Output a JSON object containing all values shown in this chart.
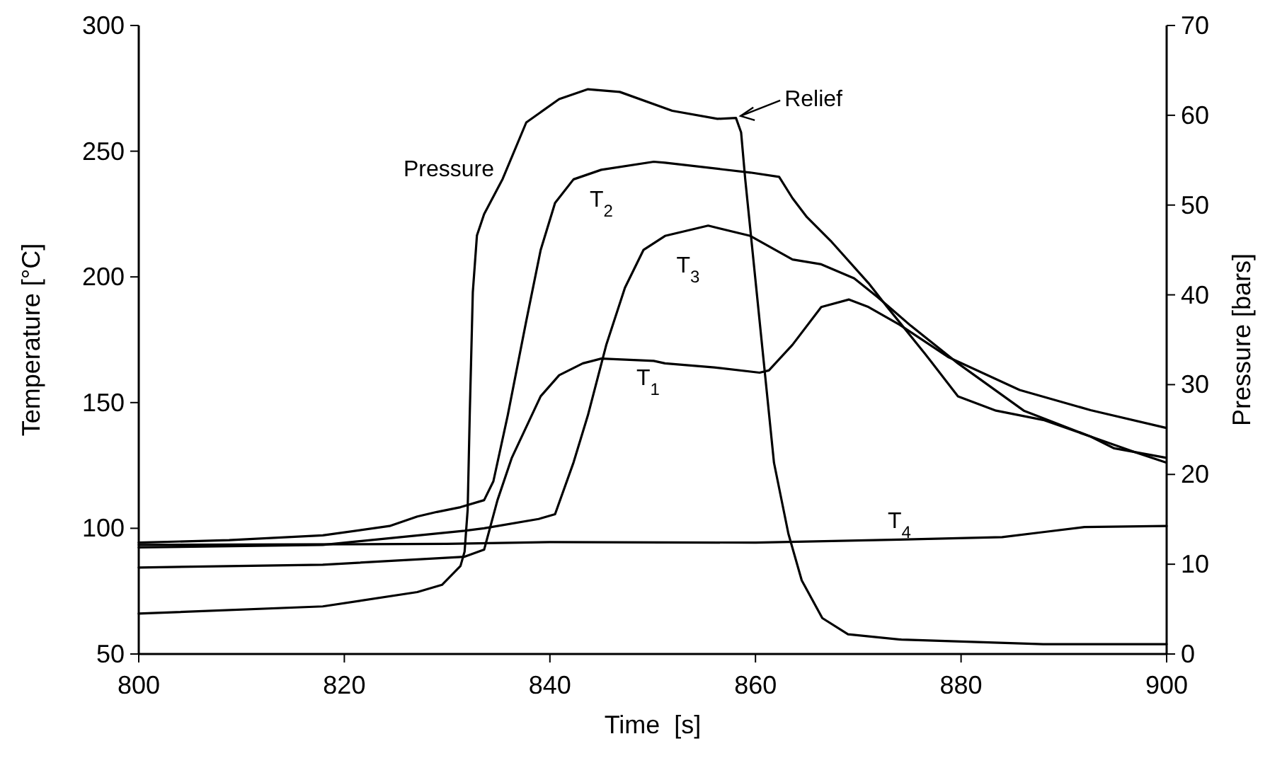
{
  "chart_data": {
    "type": "line",
    "xlabel": "Time  [s]",
    "ylabel": "Temperature [°C]",
    "y2label": "Pressure [bars]",
    "xlim": [
      800,
      900
    ],
    "xticks": [
      800,
      820,
      840,
      860,
      880,
      900
    ],
    "ylim": [
      50,
      300
    ],
    "yticks": [
      50,
      100,
      150,
      200,
      250,
      300
    ],
    "y2lim": [
      0,
      70
    ],
    "y2ticks": [
      0,
      10,
      20,
      30,
      40,
      50,
      60,
      70
    ],
    "grid": false,
    "marker": "none",
    "line_style": "solid",
    "annotations": [
      {
        "text": "Relief",
        "x": 858,
        "y": 264
      }
    ],
    "series": [
      {
        "name": "Pressure",
        "color": "#000000",
        "axis": "y2",
        "x": [
          800,
          817.9,
          827.1,
          829.5,
          831.3,
          831.7,
          832.0,
          832.2,
          832.5,
          832.9,
          833.6,
          835.4,
          837.7,
          840.9,
          843.7,
          846.8,
          851.9,
          856.3,
          858.1,
          858.6,
          859.0,
          861.8,
          863.2,
          864.5,
          866.5,
          869,
          874.2,
          888,
          900
        ],
        "values": [
          4.5,
          5.3,
          6.9,
          7.7,
          9.8,
          11.4,
          16.1,
          26.6,
          40.3,
          46.6,
          49,
          52.9,
          59.2,
          61.8,
          62.9,
          62.6,
          60.5,
          59.6,
          59.7,
          58.1,
          52.9,
          21.3,
          13.4,
          8.2,
          4.0,
          2.2,
          1.6,
          1.1,
          1.1
        ]
      },
      {
        "name": "T$_{1}$",
        "color": "#000000",
        "x": [
          800,
          817.9,
          831.7,
          833.6,
          834.9,
          836.3,
          839.1,
          840.9,
          843.2,
          845.0,
          850.1,
          851.2,
          856,
          860.4,
          861.3,
          863.6,
          866.4,
          869.1,
          871,
          874,
          878.8,
          885.7,
          892.6,
          899.9
        ],
        "values": [
          84.4,
          85.5,
          88.7,
          91.5,
          111.2,
          128.1,
          152.5,
          160.9,
          165.6,
          167.5,
          166.6,
          165.6,
          164,
          161.9,
          162.8,
          173.0,
          188.0,
          191.0,
          188.0,
          181.0,
          168.0,
          155.0,
          147.0,
          140.0
        ]
      },
      {
        "name": "T$_{2}$",
        "color": "#000000",
        "x": [
          800,
          808.8,
          817.9,
          824.4,
          827.1,
          829.0,
          831.3,
          833.6,
          834.5,
          835.9,
          837.7,
          839.1,
          840.5,
          842.3,
          845.0,
          850.1,
          851.2,
          859.5,
          862.3,
          863.6,
          865.0,
          867.3,
          871.0,
          872.8,
          876.5,
          879.7,
          883.4,
          888.0,
          892.6,
          897.1,
          899.9
        ],
        "values": [
          94.3,
          95.3,
          97.2,
          100.9,
          104.7,
          106.5,
          108.4,
          111.2,
          118.7,
          145.0,
          182.5,
          210.7,
          229.4,
          238.8,
          242.6,
          245.8,
          245.4,
          241.5,
          239.8,
          231.3,
          223.8,
          214.4,
          197.5,
          188.1,
          169.4,
          152.5,
          146.8,
          143.1,
          136.5,
          130.0,
          126.2
        ]
      },
      {
        "name": "T$_{3}$",
        "color": "#000000",
        "x": [
          800,
          817.9,
          831.7,
          833.6,
          838.9,
          840.5,
          842.3,
          843.7,
          845.5,
          847.3,
          849.1,
          851.2,
          855.4,
          859.5,
          863.6,
          866.4,
          869.6,
          871.9,
          875.1,
          879.7,
          886.1,
          892.6,
          894.9,
          899.9
        ],
        "values": [
          92.4,
          93.4,
          99.0,
          100.0,
          103.7,
          105.6,
          126.2,
          145.0,
          173.2,
          195.7,
          210.7,
          216.3,
          220.4,
          216.3,
          206.9,
          205.0,
          199.4,
          191.9,
          180.6,
          165.6,
          146.8,
          136.5,
          131.8,
          128.1
        ]
      },
      {
        "name": "T$_{4}$",
        "color": "#000000",
        "x": [
          800,
          830,
          840,
          860,
          874,
          884,
          888,
          892,
          900
        ],
        "values": [
          93.4,
          93.8,
          94.5,
          94.3,
          95.5,
          96.5,
          98.5,
          100.5,
          100.9
        ]
      }
    ]
  }
}
